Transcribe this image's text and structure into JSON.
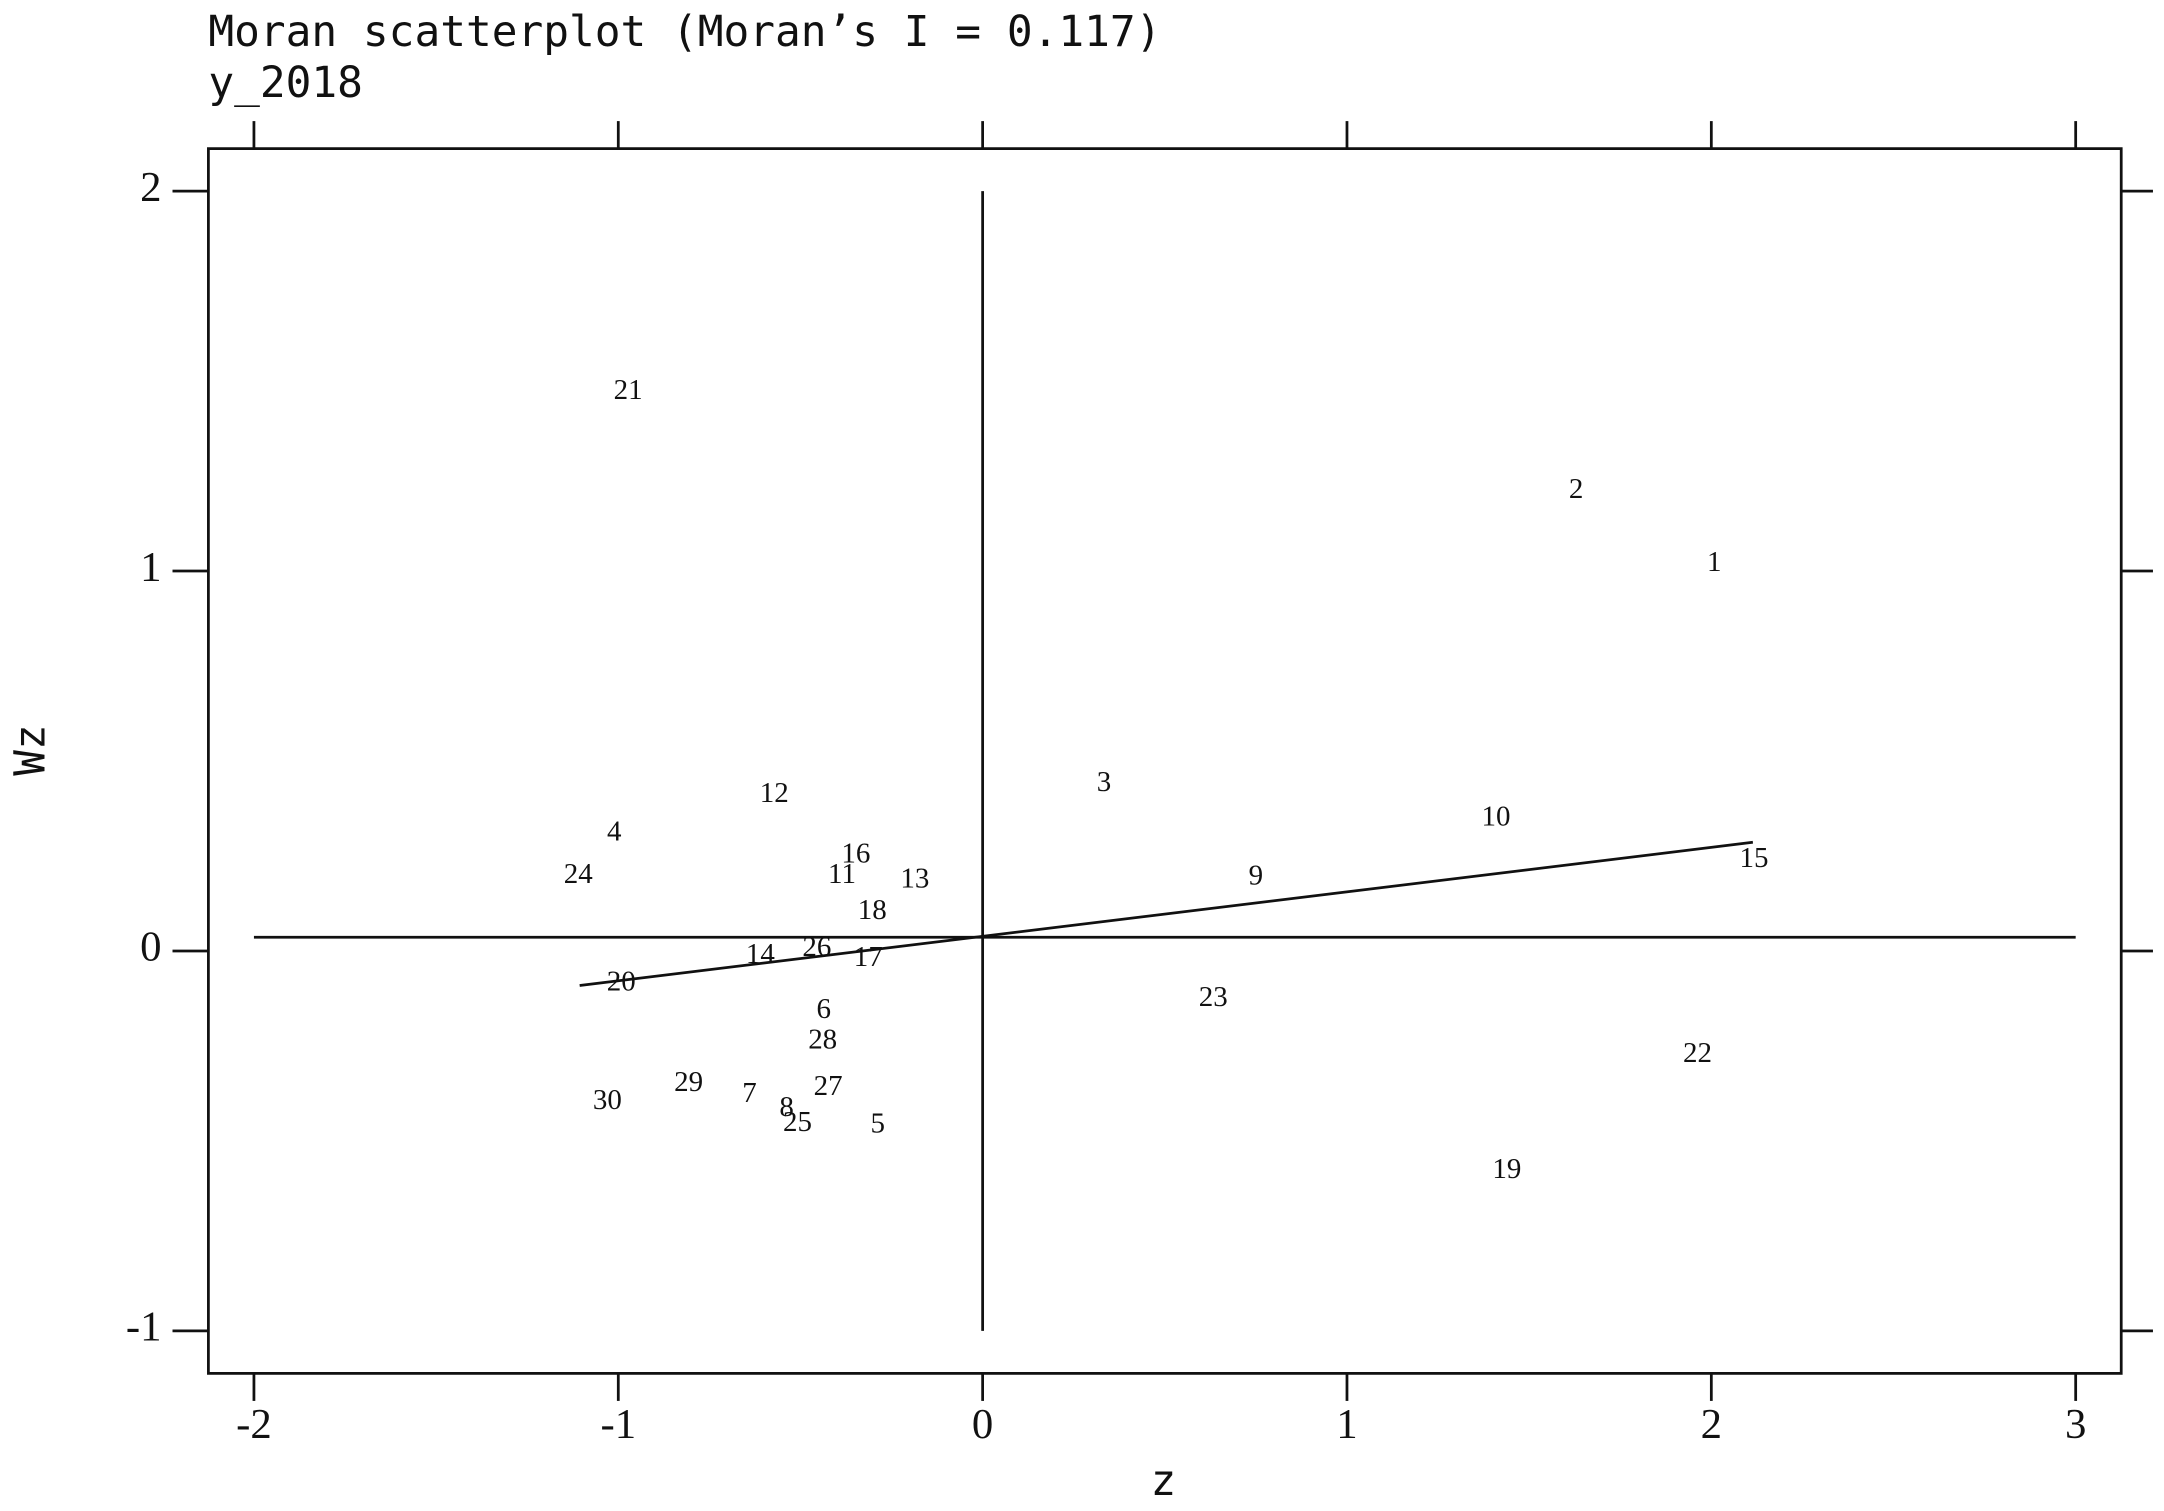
{
  "chart_data": {
    "type": "scatter",
    "title": "Moran scatterplot (Moran’s I = 0.117)",
    "subtitle": "y_2018",
    "x_label": "z",
    "y_label": "Wz",
    "xlim": [
      -2.125,
      3.125
    ],
    "ylim": [
      -1.112,
      2.112
    ],
    "xticks": [
      -2,
      -1,
      0,
      1,
      2,
      3
    ],
    "yticks": [
      -1,
      0,
      1,
      2
    ],
    "labels": [
      "1",
      "2",
      "3",
      "4",
      "5",
      "6",
      "7",
      "8",
      "9",
      "10",
      "11",
      "12",
      "13",
      "14",
      "15",
      "16",
      "17",
      "18",
      "19",
      "20",
      "21",
      "22",
      "23",
      "24",
      "25",
      "26",
      "27",
      "28",
      "29",
      "30"
    ],
    "x": [
      2.008,
      1.629,
      0.333,
      -1.011,
      -0.288,
      -0.436,
      -0.64,
      -0.538,
      0.75,
      1.409,
      -0.386,
      -0.572,
      -0.186,
      -0.61,
      2.117,
      -0.348,
      -0.314,
      -0.303,
      1.439,
      -0.992,
      -0.973,
      1.962,
      0.633,
      -1.11,
      -0.508,
      -0.455,
      -0.424,
      -0.439,
      -0.807,
      -1.03
    ],
    "values": [
      1.018,
      1.21,
      0.438,
      0.308,
      -0.46,
      -0.159,
      -0.38,
      -0.417,
      0.192,
      0.348,
      0.196,
      0.409,
      0.185,
      -0.014,
      0.239,
      0.25,
      -0.022,
      0.101,
      -0.58,
      -0.087,
      1.471,
      -0.275,
      -0.127,
      0.196,
      -0.457,
      0.004,
      -0.362,
      -0.239,
      -0.351,
      -0.399
    ],
    "regression_line": {
      "x": [
        -1.106,
        2.114
      ],
      "y": [
        -0.091,
        0.286
      ]
    },
    "hline": 0.036,
    "vline": 0
  }
}
